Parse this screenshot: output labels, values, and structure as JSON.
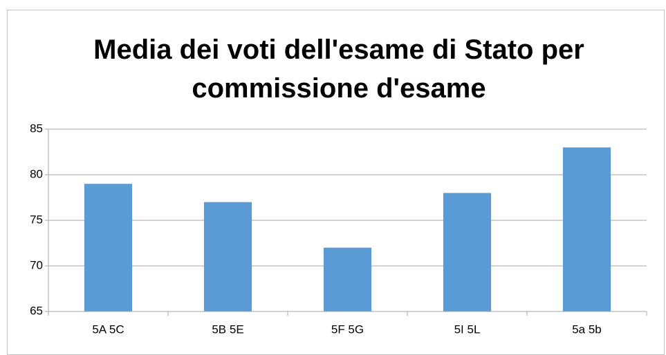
{
  "chart_data": {
    "type": "bar",
    "title": "Media dei voti dell'esame di Stato per commissione d'esame",
    "categories": [
      "5A 5C",
      "5B 5E",
      "5F 5G",
      "5I 5L",
      "5a 5b"
    ],
    "values": [
      79,
      77,
      72,
      78,
      83
    ],
    "color": "#5b9bd5",
    "ylim": [
      65,
      85
    ],
    "yticks": [
      65,
      70,
      75,
      80,
      85
    ],
    "grid": true
  }
}
